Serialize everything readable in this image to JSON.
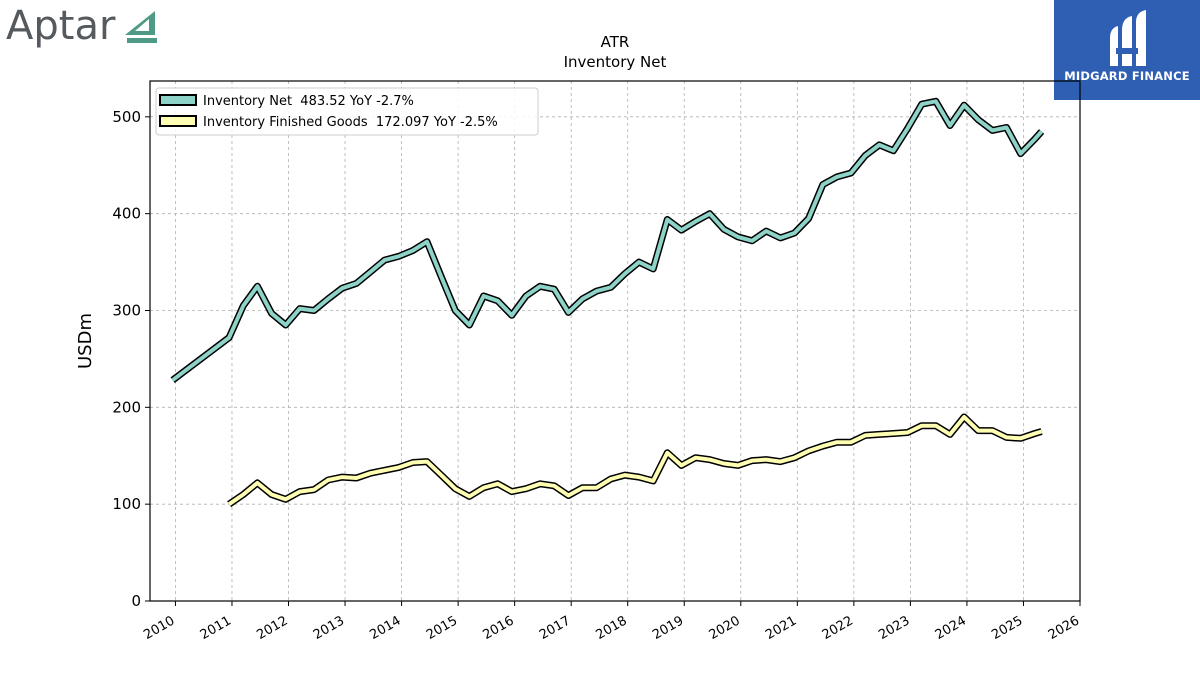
{
  "logos": {
    "left_word": "Aptar",
    "right_brand": "MIDGARD FINANCE"
  },
  "colors": {
    "inventory_net": "#8dd3c7",
    "finished_goods": "#ffffb3",
    "outline": "#000000",
    "aptar_accent": "#4f9a86",
    "midgard_bg": "#2f5fb3"
  },
  "chart_data": {
    "type": "line",
    "title": "ATR",
    "subtitle": "Inventory Net",
    "xlabel": "",
    "ylabel": "USDm",
    "xlim": [
      2009.55,
      2026.0
    ],
    "ylim": [
      0,
      537
    ],
    "x_ticks": [
      "2010",
      "2011",
      "2012",
      "2013",
      "2014",
      "2015",
      "2016",
      "2017",
      "2018",
      "2019",
      "2020",
      "2021",
      "2022",
      "2023",
      "2024",
      "2025",
      "2026"
    ],
    "y_ticks": [
      0,
      100,
      200,
      300,
      400,
      500
    ],
    "grid": true,
    "legend_position": "top-left",
    "series": [
      {
        "name": "Inventory Net  483.52 YoY -2.7%",
        "color_key": "inventory_net",
        "points": [
          [
            2009.95,
            228
          ],
          [
            2010.95,
            272
          ],
          [
            2011.2,
            305
          ],
          [
            2011.45,
            325
          ],
          [
            2011.7,
            297
          ],
          [
            2011.95,
            285
          ],
          [
            2012.2,
            302
          ],
          [
            2012.45,
            300
          ],
          [
            2012.7,
            312
          ],
          [
            2012.95,
            323
          ],
          [
            2013.2,
            328
          ],
          [
            2013.45,
            340
          ],
          [
            2013.7,
            352
          ],
          [
            2013.95,
            356
          ],
          [
            2014.2,
            362
          ],
          [
            2014.45,
            371
          ],
          [
            2014.7,
            335
          ],
          [
            2014.95,
            300
          ],
          [
            2015.2,
            285
          ],
          [
            2015.45,
            315
          ],
          [
            2015.7,
            310
          ],
          [
            2015.95,
            295
          ],
          [
            2016.2,
            315
          ],
          [
            2016.45,
            325
          ],
          [
            2016.7,
            322
          ],
          [
            2016.95,
            298
          ],
          [
            2017.2,
            312
          ],
          [
            2017.45,
            320
          ],
          [
            2017.7,
            324
          ],
          [
            2017.95,
            338
          ],
          [
            2018.2,
            350
          ],
          [
            2018.45,
            343
          ],
          [
            2018.7,
            394
          ],
          [
            2018.95,
            383
          ],
          [
            2019.2,
            392
          ],
          [
            2019.45,
            400
          ],
          [
            2019.7,
            384
          ],
          [
            2019.95,
            376
          ],
          [
            2020.2,
            372
          ],
          [
            2020.45,
            382
          ],
          [
            2020.7,
            375
          ],
          [
            2020.95,
            380
          ],
          [
            2021.2,
            395
          ],
          [
            2021.45,
            430
          ],
          [
            2021.7,
            438
          ],
          [
            2021.95,
            442
          ],
          [
            2022.2,
            460
          ],
          [
            2022.45,
            471
          ],
          [
            2022.7,
            465
          ],
          [
            2022.95,
            488
          ],
          [
            2023.2,
            513
          ],
          [
            2023.45,
            516
          ],
          [
            2023.7,
            491
          ],
          [
            2023.95,
            512
          ],
          [
            2024.2,
            497
          ],
          [
            2024.45,
            486
          ],
          [
            2024.7,
            489
          ],
          [
            2024.95,
            462
          ],
          [
            2025.2,
            477
          ],
          [
            2025.32,
            485
          ]
        ]
      },
      {
        "name": "Inventory Finished Goods  172.097 YoY -2.5%",
        "color_key": "finished_goods",
        "points": [
          [
            2010.95,
            100
          ],
          [
            2011.2,
            110
          ],
          [
            2011.45,
            122
          ],
          [
            2011.7,
            110
          ],
          [
            2011.95,
            105
          ],
          [
            2012.2,
            113
          ],
          [
            2012.45,
            115
          ],
          [
            2012.7,
            125
          ],
          [
            2012.95,
            128
          ],
          [
            2013.2,
            127
          ],
          [
            2013.45,
            132
          ],
          [
            2013.7,
            135
          ],
          [
            2013.95,
            138
          ],
          [
            2014.2,
            143
          ],
          [
            2014.45,
            144
          ],
          [
            2014.7,
            130
          ],
          [
            2014.95,
            116
          ],
          [
            2015.2,
            108
          ],
          [
            2015.45,
            117
          ],
          [
            2015.7,
            121
          ],
          [
            2015.95,
            113
          ],
          [
            2016.2,
            116
          ],
          [
            2016.45,
            121
          ],
          [
            2016.7,
            119
          ],
          [
            2016.95,
            109
          ],
          [
            2017.2,
            117
          ],
          [
            2017.45,
            117
          ],
          [
            2017.7,
            126
          ],
          [
            2017.95,
            130
          ],
          [
            2018.2,
            128
          ],
          [
            2018.45,
            124
          ],
          [
            2018.7,
            153
          ],
          [
            2018.95,
            140
          ],
          [
            2019.2,
            148
          ],
          [
            2019.45,
            146
          ],
          [
            2019.7,
            142
          ],
          [
            2019.95,
            140
          ],
          [
            2020.2,
            145
          ],
          [
            2020.45,
            146
          ],
          [
            2020.7,
            144
          ],
          [
            2020.95,
            148
          ],
          [
            2021.2,
            155
          ],
          [
            2021.45,
            160
          ],
          [
            2021.7,
            164
          ],
          [
            2021.95,
            164
          ],
          [
            2022.2,
            171
          ],
          [
            2022.45,
            172
          ],
          [
            2022.7,
            173
          ],
          [
            2022.95,
            174
          ],
          [
            2023.2,
            181
          ],
          [
            2023.45,
            181
          ],
          [
            2023.7,
            172
          ],
          [
            2023.95,
            190
          ],
          [
            2024.2,
            176
          ],
          [
            2024.45,
            176
          ],
          [
            2024.7,
            169
          ],
          [
            2024.95,
            168
          ],
          [
            2025.2,
            173
          ],
          [
            2025.32,
            175
          ]
        ]
      }
    ]
  }
}
